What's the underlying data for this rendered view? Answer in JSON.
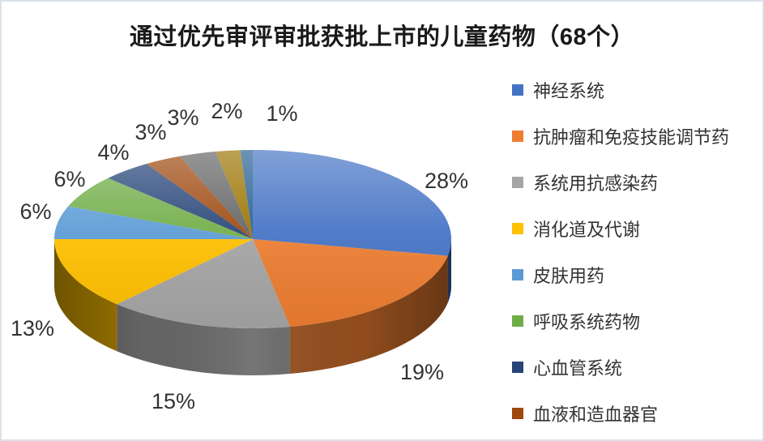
{
  "chart_data": {
    "type": "pie",
    "style": "3d",
    "title": "通过优先审评审批获批上市的儿童药物（68个）",
    "total_items": 68,
    "unit": "%",
    "data_labels": "percent, outside end",
    "legend_position": "right",
    "grid": false,
    "title_color": "#1a1a1a",
    "label_color": "#333333",
    "frame_border_color": "#dbe2ea",
    "background_color": "#ffffff",
    "slices": [
      {
        "name": "神经系统",
        "value": 28,
        "label": "28%",
        "color": "#4472C4"
      },
      {
        "name": "抗肿瘤和免疫技能调节药",
        "value": 19,
        "label": "19%",
        "color": "#ED7D31"
      },
      {
        "name": "系统用抗感染药",
        "value": 15,
        "label": "15%",
        "color": "#A5A5A5"
      },
      {
        "name": "消化道及代谢",
        "value": 13,
        "label": "13%",
        "color": "#FFC000"
      },
      {
        "name": "皮肤用药",
        "value": 6,
        "label": "6%",
        "color": "#5B9BD5"
      },
      {
        "name": "呼吸系统药物",
        "value": 6,
        "label": "6%",
        "color": "#70AD47"
      },
      {
        "name": "心血管系统",
        "value": 4,
        "label": "4%",
        "color": "#264478"
      },
      {
        "name": "血液和造血器官",
        "value": 3,
        "label": "3%",
        "color": "#9E480E"
      },
      {
        "name": "",
        "value": 3,
        "label": "3%",
        "color": "#636363"
      },
      {
        "name": "",
        "value": 2,
        "label": "2%",
        "color": "#997300"
      },
      {
        "name": "",
        "value": 1,
        "label": "1%",
        "color": "#255E91"
      }
    ],
    "legend_entries": [
      {
        "label": "神经系统",
        "color": "#4472C4"
      },
      {
        "label": "抗肿瘤和免疫技能调节药",
        "color": "#ED7D31"
      },
      {
        "label": "系统用抗感染药",
        "color": "#A5A5A5"
      },
      {
        "label": "消化道及代谢",
        "color": "#FFC000"
      },
      {
        "label": "皮肤用药",
        "color": "#5B9BD5"
      },
      {
        "label": "呼吸系统药物",
        "color": "#70AD47"
      },
      {
        "label": "心血管系统",
        "color": "#264478"
      },
      {
        "label": "血液和造血器官",
        "color": "#9E480E"
      }
    ]
  }
}
